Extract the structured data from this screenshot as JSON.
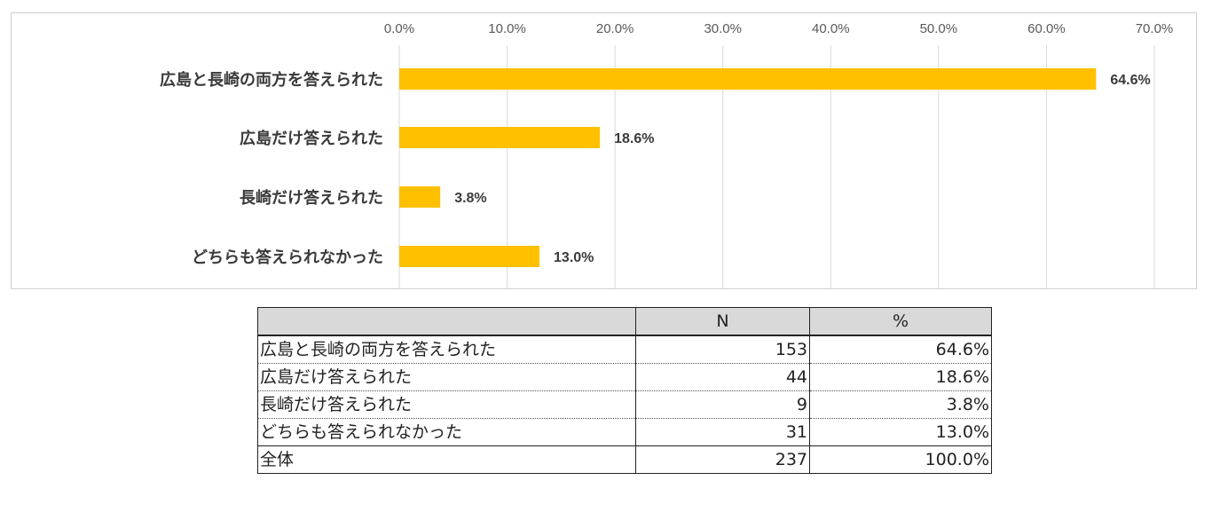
{
  "chart_data": {
    "type": "bar",
    "orientation": "horizontal",
    "categories": [
      "広島と長崎の両方を答えられた",
      "広島だけ答えられた",
      "長崎だけ答えられた",
      "どちらも答えられなかった"
    ],
    "values": [
      64.6,
      18.6,
      3.8,
      13.0
    ],
    "value_labels": [
      "64.6%",
      "18.6%",
      "3.8%",
      "13.0%"
    ],
    "xticks": [
      "0.0%",
      "10.0%",
      "20.0%",
      "30.0%",
      "40.0%",
      "50.0%",
      "60.0%",
      "70.0%"
    ],
    "xlim": [
      0,
      70
    ],
    "grid": true,
    "bar_color": "#FFC000",
    "title": "",
    "xlabel": "",
    "ylabel": ""
  },
  "table": {
    "headers": [
      "",
      "N",
      "%"
    ],
    "rows": [
      {
        "label": "広島と長崎の両方を答えられた",
        "n": "153",
        "pct": "64.6%"
      },
      {
        "label": "広島だけ答えられた",
        "n": "44",
        "pct": "18.6%"
      },
      {
        "label": "長崎だけ答えられた",
        "n": "9",
        "pct": "3.8%"
      },
      {
        "label": "どちらも答えられなかった",
        "n": "31",
        "pct": "13.0%"
      }
    ],
    "total": {
      "label": "全体",
      "n": "237",
      "pct": "100.0%"
    },
    "header_bg": "#D9D9D9"
  }
}
